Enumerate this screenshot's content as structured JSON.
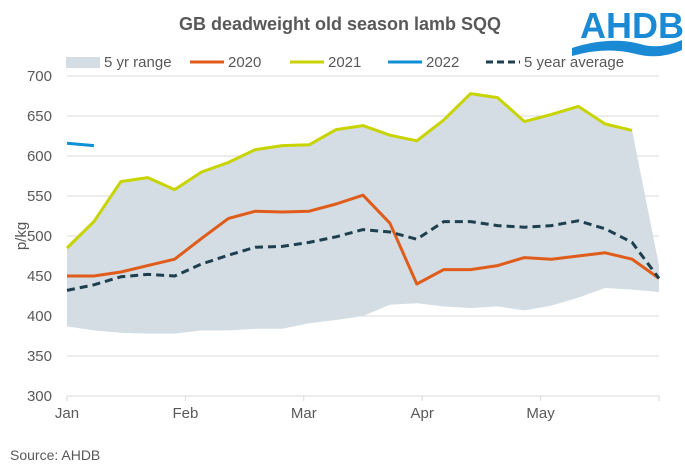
{
  "chart_data": {
    "type": "line",
    "title": "GB deadweight old season lamb SQQ",
    "xlabel": "",
    "ylabel": "p/kg",
    "ylim": [
      300,
      700
    ],
    "yticks": [
      300,
      350,
      400,
      450,
      500,
      550,
      600,
      650,
      700
    ],
    "x_tick_labels": [
      "Jan",
      "Feb",
      "Mar",
      "Apr",
      "May"
    ],
    "x_weeks_total": 22,
    "grid": true,
    "legend_placement": "top",
    "source": "Source: AHDB",
    "logo": "AHDB",
    "range": {
      "name": "5 yr range",
      "color": "#d3dde3",
      "low": [
        387,
        382,
        379,
        378,
        378,
        382,
        382,
        384,
        384,
        391,
        395,
        400,
        414,
        416,
        412,
        410,
        412,
        407,
        413,
        423,
        435,
        433,
        430
      ],
      "high": [
        485,
        518,
        568,
        573,
        558,
        580,
        592,
        608,
        613,
        614,
        633,
        638,
        626,
        619,
        645,
        678,
        673,
        643,
        652,
        662,
        640,
        632,
        463
      ]
    },
    "series": [
      {
        "name": "2020",
        "color": "#e05c1a",
        "dash": false,
        "values": [
          450,
          450,
          455,
          463,
          471,
          497,
          522,
          531,
          530,
          531,
          540,
          551,
          516,
          440,
          458,
          458,
          463,
          473,
          471,
          475,
          479,
          471,
          447
        ]
      },
      {
        "name": "2021",
        "color": "#c8d400",
        "dash": false,
        "values": [
          485,
          518,
          568,
          573,
          558,
          580,
          592,
          608,
          613,
          614,
          633,
          638,
          626,
          619,
          645,
          678,
          673,
          643,
          652,
          662,
          640,
          632
        ]
      },
      {
        "name": "2022",
        "color": "#0f8fd6",
        "dash": false,
        "values": [
          616,
          613
        ]
      },
      {
        "name": "5 year average",
        "color": "#1e3f4f",
        "dash": true,
        "values": [
          432,
          439,
          449,
          452,
          450,
          465,
          476,
          486,
          487,
          492,
          499,
          508,
          505,
          496,
          518,
          518,
          513,
          511,
          513,
          519,
          509,
          492,
          447
        ]
      }
    ]
  }
}
